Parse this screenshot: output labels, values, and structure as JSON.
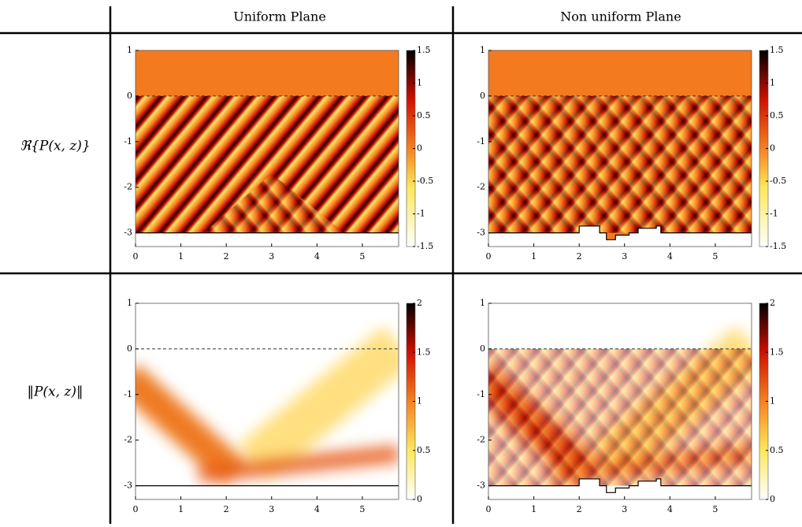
{
  "header": {
    "columns": [
      "Uniform Plane",
      "Non uniform Plane"
    ]
  },
  "rows": [
    "ℜ{P(x, z)}",
    "‖P(x, z)‖"
  ],
  "chart_data": [
    {
      "type": "heatmap",
      "xlim": [
        0,
        5.8
      ],
      "xticks": [
        0,
        1,
        2,
        3,
        4,
        5
      ],
      "ylim": [
        -3.3,
        1
      ],
      "yticks": [
        1,
        0,
        -1,
        -2,
        -3
      ],
      "clim": [
        -1.5,
        1.5
      ],
      "cticks": [
        1.5,
        1,
        0.5,
        0,
        -0.5,
        -1,
        -1.5
      ]
    },
    {
      "type": "heatmap",
      "xlim": [
        0,
        5.8
      ],
      "xticks": [
        0,
        1,
        2,
        3,
        4,
        5
      ],
      "ylim": [
        -3.3,
        1
      ],
      "yticks": [
        1,
        0,
        -1,
        -2,
        -3
      ],
      "clim": [
        -1.5,
        1.5
      ],
      "cticks": [
        1.5,
        1,
        0.5,
        0,
        -0.5,
        -1,
        -1.5
      ]
    },
    {
      "type": "heatmap",
      "xlim": [
        0,
        5.8
      ],
      "xticks": [
        0,
        1,
        2,
        3,
        4,
        5
      ],
      "ylim": [
        -3.3,
        1
      ],
      "yticks": [
        1,
        0,
        -1,
        -2,
        -3
      ],
      "clim": [
        0,
        2
      ],
      "cticks": [
        2,
        1.5,
        1,
        0.5,
        0
      ]
    },
    {
      "type": "heatmap",
      "xlim": [
        0,
        5.8
      ],
      "xticks": [
        0,
        1,
        2,
        3,
        4,
        5
      ],
      "ylim": [
        -3.3,
        1
      ],
      "yticks": [
        1,
        0,
        -1,
        -2,
        -3
      ],
      "clim": [
        0,
        2
      ],
      "cticks": [
        2,
        1.5,
        1,
        0.5,
        0
      ]
    }
  ]
}
